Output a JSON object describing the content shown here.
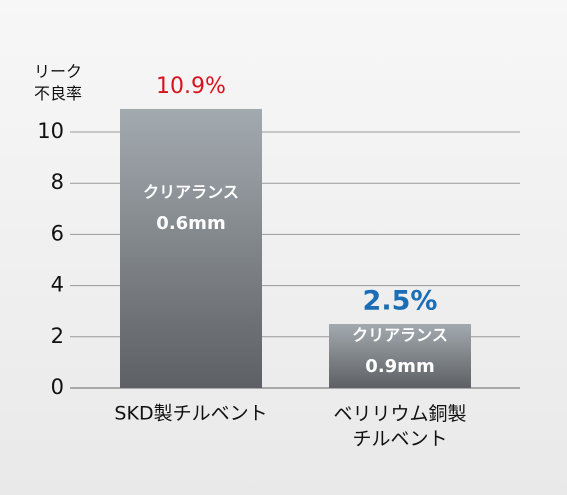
{
  "chart_data": {
    "type": "bar",
    "y_axis_label": "リーク\n不良率",
    "categories": [
      "SKD製チルベント",
      "ベリリウム銅製\nチルベント"
    ],
    "values": [
      10.9,
      2.5
    ],
    "value_labels": [
      "10.9%",
      "2.5%"
    ],
    "value_label_colors": [
      "#d7141d",
      "#1b6db5"
    ],
    "bar_annotations": [
      {
        "text": "クリアランス",
        "clearance": "0.6mm"
      },
      {
        "text": "クリアランス",
        "clearance": "0.9mm"
      }
    ],
    "ylim": [
      0,
      11
    ],
    "yticks": [
      0,
      2,
      4,
      6,
      8,
      10
    ],
    "grid": true
  }
}
